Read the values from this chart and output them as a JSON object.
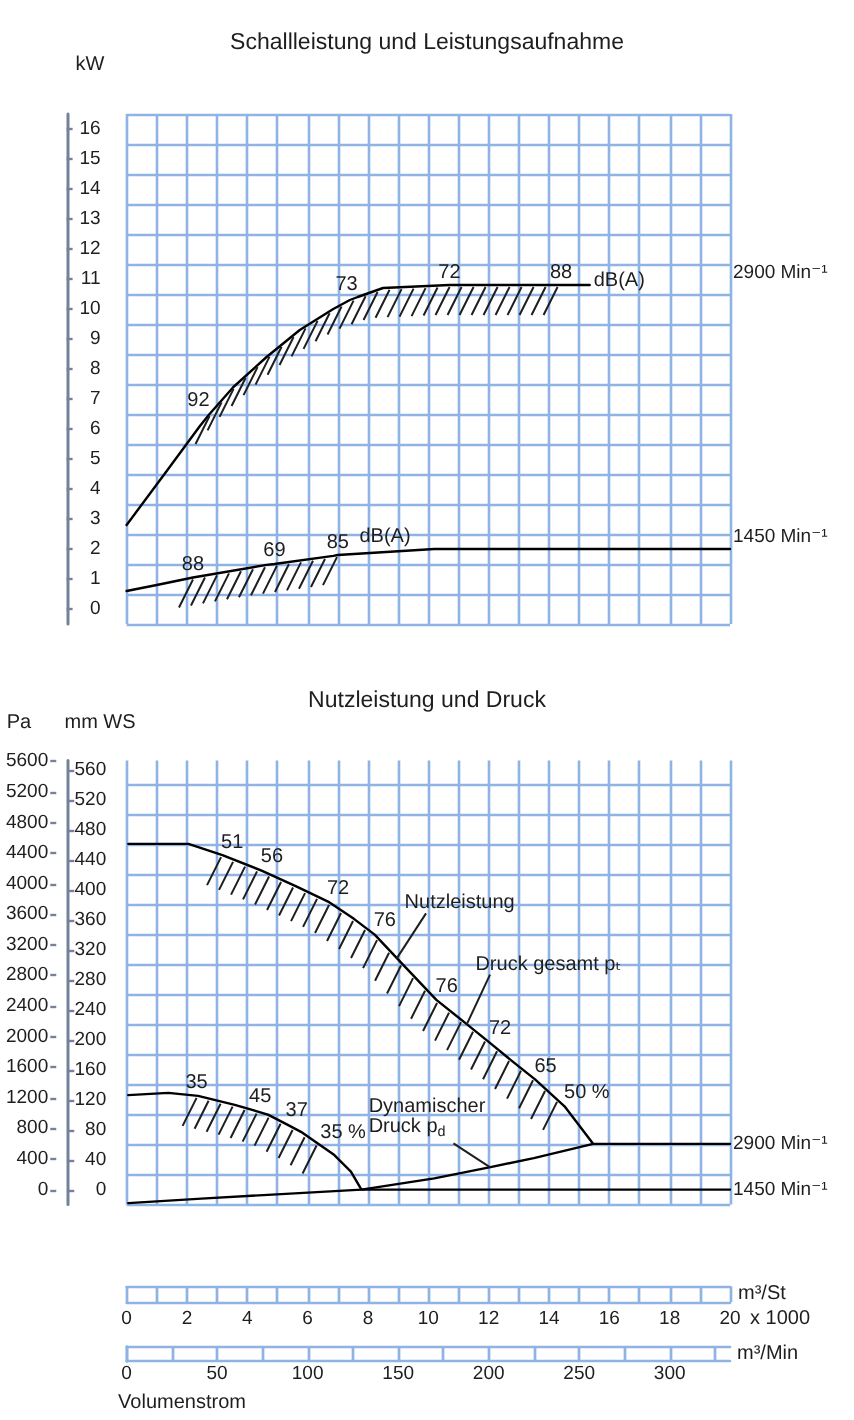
{
  "chart_data": [
    {
      "type": "line",
      "title": "Schallleistung und Leistungsaufnahme",
      "ylabel": "kW",
      "xlim": [
        0,
        20
      ],
      "xticks": [
        0,
        1,
        2,
        3,
        4,
        5,
        6,
        7,
        8,
        9,
        10,
        11,
        12,
        13,
        14,
        15,
        16,
        17,
        18,
        19,
        20
      ],
      "ylim": [
        -0.5,
        16.5
      ],
      "yticks": [
        {
          "value": -0.5,
          "label": null
        },
        0,
        {
          "value": 0.5,
          "label": null
        },
        1,
        {
          "value": 1.5,
          "label": null
        },
        2,
        {
          "value": 2.5,
          "label": null
        },
        3,
        {
          "value": 3.5,
          "label": null
        },
        4,
        {
          "value": 4.5,
          "label": null
        },
        5,
        {
          "value": 5.5,
          "label": null
        },
        6,
        {
          "value": 6.5,
          "label": null
        },
        7,
        {
          "value": 7.5,
          "label": null
        },
        8,
        {
          "value": 8.5,
          "label": null
        },
        9,
        {
          "value": 9.5,
          "label": null
        },
        10,
        {
          "value": 10.5,
          "label": null
        },
        11,
        {
          "value": 11.5,
          "label": null
        },
        12,
        {
          "value": 12.5,
          "label": null
        },
        13,
        {
          "value": 13.5,
          "label": null
        },
        14,
        {
          "value": 14.5,
          "label": null
        },
        15,
        {
          "value": 15.5,
          "label": null
        },
        16,
        {
          "value": 16.5,
          "label": null
        }
      ],
      "tick_labels": "y",
      "grid": true,
      "series": [
        {
          "name": "2900 Min⁻¹",
          "color": "#000000",
          "x": [
            0,
            1.33,
            2.43,
            2.75,
            3.54,
            4.64,
            5.74,
            6.85,
            7.4,
            7.66,
            8.5,
            10.7,
            14.4,
            15.35
          ],
          "values": [
            2.8,
            4.6,
            6.1,
            6.5,
            7.4,
            8.4,
            9.3,
            10.0,
            10.3,
            10.4,
            10.7,
            10.8,
            10.8,
            10.8
          ]
        },
        {
          "name": "1450 Min⁻¹",
          "color": "#000000",
          "x": [
            0,
            1,
            2.2,
            4.64,
            4.9,
            6.85,
            7.0,
            10.2,
            20
          ],
          "values": [
            0.6,
            0.8,
            1.05,
            1.47,
            1.5,
            1.77,
            1.8,
            2.0,
            2.0
          ]
        }
      ],
      "annotations": [
        {
          "text": "dB(A)",
          "x": 15.35,
          "y": 10.8
        },
        "dB(A)",
        {
          "text": "92",
          "x": 2.75,
          "y": 6.5
        },
        {
          "text": "73",
          "x": 7.66,
          "y": 10.4
        },
        {
          "text": "72",
          "x": 10.7,
          "y": 10.8
        },
        {
          "text": "88",
          "x": 14.4,
          "y": 10.8
        },
        {
          "text": "88",
          "x": 2.2,
          "y": 1.05
        },
        {
          "text": "69",
          "x": 4.9,
          "y": 1.5
        },
        {
          "text": "85",
          "x": 7.0,
          "y": 1.8
        }
      ]
    },
    {
      "type": "line",
      "title": "Nutzleistung und Druck",
      "ylabel": "mm WS",
      "y2label": "Pa",
      "xlabel": "m³/St",
      "x2label": "m³/Min",
      "xlim": [
        0,
        20
      ],
      "xticks": [
        0,
        {
          "value": 1,
          "label": null
        },
        2,
        {
          "value": 3,
          "label": null
        },
        4,
        {
          "value": 5,
          "label": null
        },
        6,
        {
          "value": 7,
          "label": null
        },
        8,
        {
          "value": 9,
          "label": null
        },
        10,
        {
          "value": 11,
          "label": null
        },
        12,
        {
          "value": 13,
          "label": null
        },
        14,
        {
          "value": 15,
          "label": null
        },
        16,
        {
          "value": 17,
          "label": null
        },
        18,
        {
          "value": 19,
          "label": null
        },
        20
      ],
      "x2lim": [
        0,
        333.3
      ],
      "x2ticks": [
        0,
        50,
        100,
        150,
        200,
        250,
        300
      ],
      "ylim": [
        -20,
        572
      ],
      "yticks": [
        {
          "value": -20,
          "label": null
        },
        0,
        {
          "value": 20,
          "label": null
        },
        40,
        {
          "value": 60,
          "label": null
        },
        80,
        {
          "value": 100,
          "label": null
        },
        120,
        {
          "value": 140,
          "label": null
        },
        160,
        {
          "value": 180,
          "label": null
        },
        200,
        {
          "value": 220,
          "label": null
        },
        240,
        {
          "value": 260,
          "label": null
        },
        280,
        {
          "value": 300,
          "label": null
        },
        320,
        {
          "value": 340,
          "label": null
        },
        360,
        {
          "value": 380,
          "label": null
        },
        400,
        {
          "value": 420,
          "label": null
        },
        440,
        {
          "value": 460,
          "label": null
        },
        480,
        {
          "value": 500,
          "label": null
        },
        520,
        {
          "value": 540,
          "label": null
        },
        560
      ],
      "y2lim": [
        -196,
        5610
      ],
      "y2ticks": [
        0,
        400,
        800,
        1200,
        1600,
        2000,
        2400,
        2800,
        3200,
        3600,
        4000,
        4400,
        4800,
        5200,
        5600
      ],
      "grid": true,
      "series": [
        {
          "name": "2900 Min⁻¹",
          "color": "#000000",
          "x": [
            0,
            2.0,
            3.13,
            4.45,
            5.6,
            6.64,
            7.5,
            8.19,
            9.06,
            10.24,
            11.27,
            12.01,
            12.8,
            13.52,
            14.5,
            15.45,
            20
          ],
          "values": [
            461,
            461,
            446,
            425,
            404,
            384,
            361,
            340,
            303,
            253,
            220,
            196,
            170,
            147,
            111,
            61,
            61
          ]
        },
        {
          "name": "1450 Min⁻¹",
          "color": "#000000",
          "x": [
            0,
            1.33,
            2.32,
            3.54,
            4.06,
            4.64,
            5.27,
            5.74,
            6.42,
            6.85,
            7.4,
            7.75,
            20
          ],
          "values": [
            126,
            129,
            125,
            113,
            107,
            100,
            87,
            77,
            58,
            46,
            24,
            0,
            0
          ]
        },
        {
          "color": "#000000",
          "x": [
            0,
            2.43,
            4.64,
            7.75,
            10.17,
            12.04,
            13.48,
            15.45
          ],
          "values": [
            -18,
            -12,
            -7,
            0,
            15,
            30,
            42,
            61
          ]
        }
      ],
      "annotations": [
        {
          "text": "Nutzleistung",
          "x": 8.95,
          "y": 308
        },
        {
          "text": "Druck gesamt pₜ",
          "x": 11.27,
          "y": 220
        },
        {
          "text": "Dynamischer\nDruck p$_{d}$",
          "x": 12.04,
          "y": 30
        },
        "x 1000",
        "Volumenstrom",
        {
          "text": "51",
          "x": 3.13,
          "y": 446
        },
        {
          "text": "56",
          "x": 4.45,
          "y": 425
        },
        {
          "text": "72",
          "x": 6.64,
          "y": 384
        },
        {
          "text": "76",
          "x": 8.19,
          "y": 340
        },
        {
          "text": "76",
          "x": 10.24,
          "y": 253
        },
        {
          "text": "72",
          "x": 12.01,
          "y": 196
        },
        {
          "text": "65",
          "x": 13.52,
          "y": 147
        },
        {
          "text": "50 %",
          "x": 14.5,
          "y": 111
        },
        {
          "text": "35",
          "x": 2.32,
          "y": 125
        },
        {
          "text": "45",
          "x": 4.06,
          "y": 107
        },
        {
          "text": "37",
          "x": 5.27,
          "y": 87
        },
        {
          "text": "35 %",
          "x": 6.42,
          "y": 58
        }
      ]
    }
  ]
}
